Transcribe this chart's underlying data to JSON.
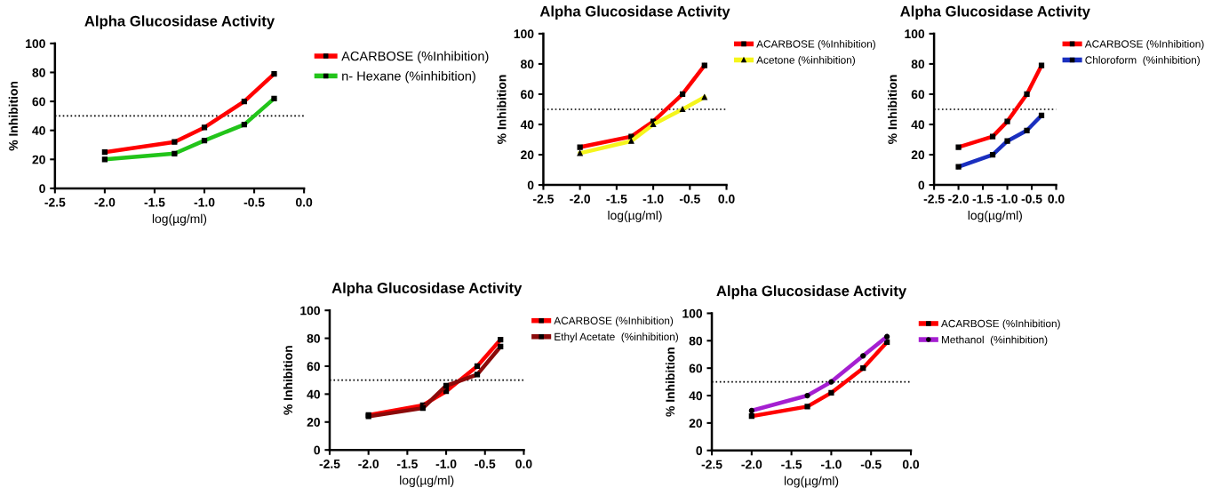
{
  "chart_data": [
    {
      "type": "line",
      "title": "Alpha Glucosidase Activity",
      "xlabel": "log(µg/ml)",
      "ylabel": "% Inhibition",
      "x": [
        -2,
        -1.3,
        -1,
        -0.6,
        -0.3
      ],
      "xlim": [
        -2.5,
        0
      ],
      "xticks": [
        {
          "value": -2.5,
          "label": "-2.5"
        },
        {
          "value": -2,
          "label": "-2.0"
        },
        {
          "value": -1.5,
          "label": "-1.5"
        },
        {
          "value": -1,
          "label": "-1.0"
        },
        {
          "value": -0.5,
          "label": "-0.5"
        },
        {
          "value": 0,
          "label": "0.0"
        }
      ],
      "ylim": [
        0,
        100
      ],
      "yticks": [
        0,
        20,
        40,
        60,
        80,
        100
      ],
      "grid": false,
      "legend": "right",
      "ref_lines": [
        {
          "axis": "y",
          "value": 50,
          "line_style": "dotted"
        }
      ],
      "series": [
        {
          "name": "ACARBOSE (%Inhibition)",
          "color": "#ff0000",
          "marker": "square",
          "values": [
            25,
            32,
            42,
            60,
            79
          ]
        },
        {
          "name": "n- Hexane (%inhibition)",
          "color": "#22c41a",
          "marker": "square",
          "values": [
            20,
            24,
            33,
            44,
            62
          ]
        }
      ]
    },
    {
      "type": "line",
      "title": "Alpha Glucosidase Activity",
      "xlabel": "log(µg/ml)",
      "ylabel": "% Inhibition",
      "x": [
        -2,
        -1.3,
        -1,
        -0.6,
        -0.3
      ],
      "xlim": [
        -2.5,
        0
      ],
      "xticks": [
        {
          "value": -2.5,
          "label": "-2.5"
        },
        {
          "value": -2,
          "label": "-2.0"
        },
        {
          "value": -1.5,
          "label": "-1.5"
        },
        {
          "value": -1,
          "label": "-1.0"
        },
        {
          "value": -0.5,
          "label": "-0.5"
        },
        {
          "value": 0,
          "label": "0.0"
        }
      ],
      "ylim": [
        0,
        100
      ],
      "yticks": [
        0,
        20,
        40,
        60,
        80,
        100
      ],
      "grid": false,
      "legend": "right",
      "ref_lines": [
        {
          "axis": "y",
          "value": 50,
          "line_style": "dotted"
        }
      ],
      "series": [
        {
          "name": "ACARBOSE (%Inhibition)",
          "color": "#ff0000",
          "marker": "square",
          "values": [
            25,
            32,
            42,
            60,
            79
          ]
        },
        {
          "name": "Acetone (%inhibition)",
          "color": "#f5f51c",
          "marker": "triangle",
          "values": [
            21,
            29,
            40,
            50,
            58
          ]
        }
      ]
    },
    {
      "type": "line",
      "title": "Alpha Glucosidase Activity",
      "xlabel": "log(µg/ml)",
      "ylabel": "% Inhibition",
      "x": [
        -2,
        -1.3,
        -1,
        -0.6,
        -0.3
      ],
      "xlim": [
        -2.5,
        0
      ],
      "xticks": [
        {
          "value": -2.5,
          "label": "-2.5"
        },
        {
          "value": -2,
          "label": "-2.0"
        },
        {
          "value": -1.5,
          "label": "-1.5"
        },
        {
          "value": -1,
          "label": "-1.0"
        },
        {
          "value": -0.5,
          "label": "-0.5"
        },
        {
          "value": 0,
          "label": "0.0"
        }
      ],
      "ylim": [
        0,
        100
      ],
      "yticks": [
        0,
        20,
        40,
        60,
        80,
        100
      ],
      "grid": false,
      "legend": "right",
      "ref_lines": [
        {
          "axis": "y",
          "value": 50,
          "line_style": "dotted"
        }
      ],
      "series": [
        {
          "name": "ACARBOSE (%Inhibition)",
          "color": "#ff0000",
          "marker": "square",
          "values": [
            25,
            32,
            42,
            60,
            79
          ]
        },
        {
          "name": "Chloroform  (%inhibition)",
          "color": "#1a2fbf",
          "marker": "square",
          "values": [
            12,
            20,
            29,
            36,
            46
          ]
        }
      ]
    },
    {
      "type": "line",
      "title": "Alpha Glucosidase Activity",
      "xlabel": "log(µg/ml)",
      "ylabel": "% Inhibition",
      "x": [
        -2,
        -1.3,
        -1,
        -0.6,
        -0.3
      ],
      "xlim": [
        -2.5,
        0
      ],
      "xticks": [
        {
          "value": -2.5,
          "label": "-2.5"
        },
        {
          "value": -2,
          "label": "-2.0"
        },
        {
          "value": -1.5,
          "label": "-1.5"
        },
        {
          "value": -1,
          "label": "-1.0"
        },
        {
          "value": -0.5,
          "label": "-0.5"
        },
        {
          "value": 0,
          "label": "0.0"
        }
      ],
      "ylim": [
        0,
        100
      ],
      "yticks": [
        0,
        20,
        40,
        60,
        80,
        100
      ],
      "grid": false,
      "legend": "right",
      "ref_lines": [
        {
          "axis": "y",
          "value": 50,
          "line_style": "dotted"
        }
      ],
      "series": [
        {
          "name": "ACARBOSE (%Inhibition)",
          "color": "#ff0000",
          "marker": "square",
          "values": [
            25,
            32,
            42,
            60,
            79
          ]
        },
        {
          "name": "Ethyl Acetate  (%inhibition)",
          "color": "#8b0a0a",
          "marker": "square",
          "values": [
            24,
            30,
            46,
            54,
            74
          ]
        }
      ]
    },
    {
      "type": "line",
      "title": "Alpha Glucosidase Activity",
      "xlabel": "log(µg/ml)",
      "ylabel": "% Inhibition",
      "x": [
        -2,
        -1.3,
        -1,
        -0.6,
        -0.3
      ],
      "xlim": [
        -2.5,
        0
      ],
      "xticks": [
        {
          "value": -2.5,
          "label": "-2.5"
        },
        {
          "value": -2,
          "label": "-2.0"
        },
        {
          "value": -1.5,
          "label": "-1.5"
        },
        {
          "value": -1,
          "label": "-1.0"
        },
        {
          "value": -0.5,
          "label": "-0.5"
        },
        {
          "value": 0,
          "label": "0.0"
        }
      ],
      "ylim": [
        0,
        100
      ],
      "yticks": [
        0,
        20,
        40,
        60,
        80,
        100
      ],
      "grid": false,
      "legend": "right",
      "ref_lines": [
        {
          "axis": "y",
          "value": 50,
          "line_style": "dotted"
        }
      ],
      "series": [
        {
          "name": "ACARBOSE (%Inhibition)",
          "color": "#ff0000",
          "marker": "square",
          "values": [
            25,
            32,
            42,
            60,
            79
          ]
        },
        {
          "name": "Methanol  (%inhibition)",
          "color": "#a51fd1",
          "marker": "circle",
          "values": [
            29,
            40,
            50,
            69,
            83
          ]
        }
      ]
    }
  ]
}
